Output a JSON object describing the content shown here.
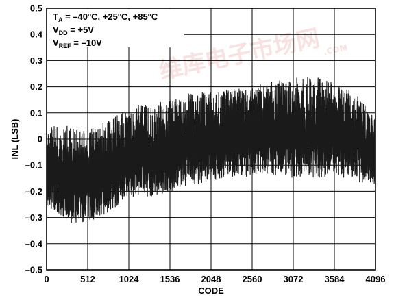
{
  "chart_data": {
    "type": "line",
    "xlabel": "CODE",
    "ylabel": "INL (LSB)",
    "xlim": [
      0,
      4096
    ],
    "ylim": [
      -0.5,
      0.5
    ],
    "x_ticks": [
      0,
      512,
      1024,
      1536,
      2048,
      2560,
      3072,
      3584,
      4096
    ],
    "y_ticks": [
      -0.5,
      -0.4,
      -0.3,
      -0.2,
      -0.1,
      0,
      0.1,
      0.2,
      0.3,
      0.4,
      0.5
    ],
    "x_tick_labels": [
      "0",
      "512",
      "1024",
      "1536",
      "2048",
      "2560",
      "3072",
      "3584",
      "4096"
    ],
    "y_tick_labels": [
      "–0.5",
      "–0.4",
      "–0.3",
      "–0.2",
      "–0.1",
      "0",
      "0.1",
      "0.2",
      "0.3",
      "0.4",
      "0.5"
    ],
    "grid": true,
    "series_color": "#1a1a1a",
    "conditions": [
      {
        "main": "T",
        "sub": "A",
        "rest": " = –40°C, +25°C, +85°C"
      },
      {
        "main": "V",
        "sub": "DD",
        "rest": " = +5V"
      },
      {
        "main": "V",
        "sub": "REF",
        "rest": " = –10V"
      }
    ],
    "legend_position": "top-left",
    "trend": {
      "x": [
        0,
        256,
        512,
        768,
        1024,
        1280,
        1536,
        1792,
        2048,
        2304,
        2560,
        2816,
        3072,
        3328,
        3584,
        3840,
        4096
      ],
      "center": [
        -0.12,
        -0.15,
        -0.15,
        -0.13,
        -0.09,
        -0.07,
        -0.05,
        -0.03,
        -0.01,
        0.0,
        0.01,
        0.02,
        0.02,
        0.02,
        0.02,
        0.0,
        -0.05
      ],
      "min": [
        -0.25,
        -0.32,
        -0.32,
        -0.28,
        -0.22,
        -0.22,
        -0.2,
        -0.18,
        -0.16,
        -0.15,
        -0.14,
        -0.14,
        -0.15,
        -0.15,
        -0.14,
        -0.16,
        -0.18
      ],
      "max": [
        0.06,
        0.05,
        0.04,
        0.07,
        0.12,
        0.14,
        0.15,
        0.18,
        0.18,
        0.19,
        0.2,
        0.22,
        0.23,
        0.25,
        0.21,
        0.18,
        0.08
      ]
    }
  },
  "watermark": {
    "text": "维库电子市场网",
    "subtext": ".COM"
  }
}
